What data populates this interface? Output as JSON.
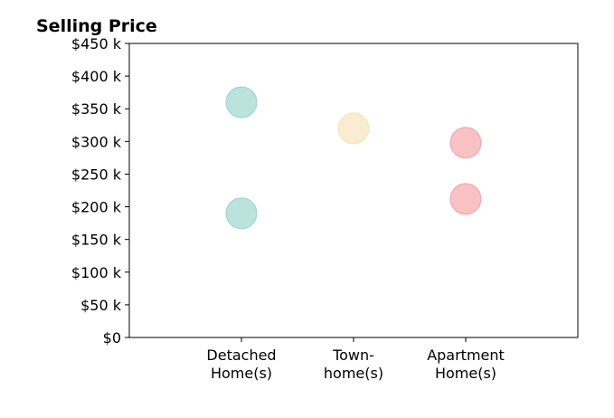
{
  "chart_data": {
    "type": "scatter",
    "title": "Selling Price",
    "xlabel": "",
    "ylabel": "",
    "categories": [
      [
        "Detached",
        "Home(s)"
      ],
      [
        "Town-",
        "home(s)"
      ],
      [
        "Apartment",
        "Home(s)"
      ]
    ],
    "y_ticks": [
      "$0",
      "$50 k",
      "$100 k",
      "$150 k",
      "$200 k",
      "$250 k",
      "$300 k",
      "$350 k",
      "$400 k",
      "$450 k"
    ],
    "ylim": [
      0,
      450
    ],
    "xlim": [
      -1,
      3
    ],
    "grid": false,
    "points": [
      {
        "category": 0,
        "value": 360,
        "color": "#8fcfc7"
      },
      {
        "category": 0,
        "value": 190,
        "color": "#8fcfc7"
      },
      {
        "category": 1,
        "value": 320,
        "color": "#f6dfb0"
      },
      {
        "category": 2,
        "value": 298,
        "color": "#f3999f"
      },
      {
        "category": 2,
        "value": 212,
        "color": "#f3999f"
      }
    ]
  }
}
